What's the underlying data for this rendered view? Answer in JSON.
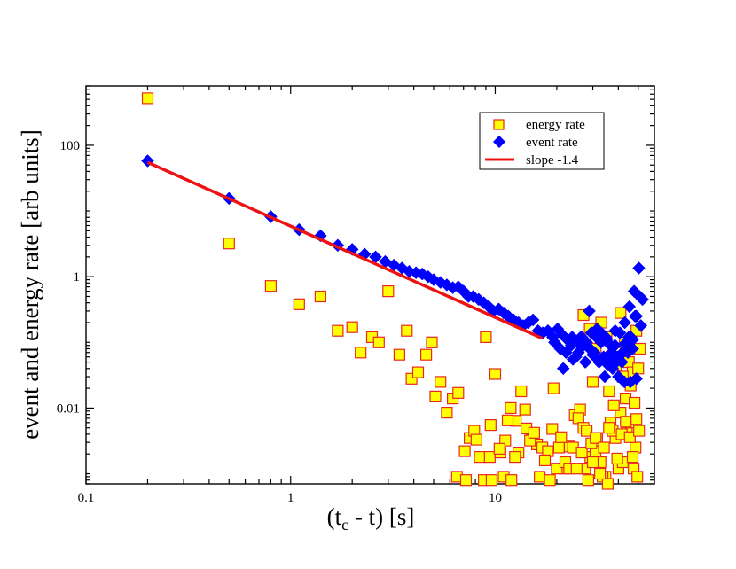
{
  "chart_data": {
    "type": "scatter",
    "title": "",
    "xlabel_main": "(t",
    "xlabel_sub": "c",
    "xlabel_rest": " - t) [s]",
    "ylabel": "event and energy rate [arb units]",
    "xscale": "log",
    "yscale": "log",
    "xlim": [
      0.1,
      60
    ],
    "ylim": [
      0.0007,
      800
    ],
    "xticks": [
      0.1,
      1,
      10
    ],
    "xtick_labels": [
      "0.1",
      "1",
      "10"
    ],
    "yticks": [
      0.01,
      1,
      100
    ],
    "ytick_labels": [
      "0.01",
      "1",
      "100"
    ],
    "legend_position": "top-right",
    "series": [
      {
        "name": "energy rate",
        "marker": "square",
        "fill": "#ffff00",
        "stroke": "#e8281e",
        "x": [
          0.2,
          0.5,
          0.8,
          1.1,
          1.4,
          1.7,
          2.0,
          2.2,
          2.5,
          2.7,
          3.0,
          3.4,
          3.7,
          3.9,
          4.2,
          4.6,
          4.9,
          5.1,
          5.4,
          5.8,
          6.2,
          6.6,
          7.1,
          7.5,
          7.9,
          8.4,
          9.0,
          9.4,
          10.0,
          10.6,
          11.2,
          11.9,
          12.6,
          13.4,
          14.2,
          15.0,
          16.0,
          17.0,
          18.1,
          19.3,
          20.5,
          21.8,
          23.1,
          24.5,
          26.0,
          27.5,
          29.2,
          30.9,
          32.7,
          34.6,
          36.6,
          38.7,
          41.0,
          43.4,
          45.9,
          48.5,
          6.5,
          7.2,
          8.1,
          8.8,
          9.6,
          11.0,
          12.0,
          13.0,
          14.8,
          16.5,
          18.5,
          20.0,
          22.0,
          24.0,
          25.5,
          27.0,
          28.5,
          30.0,
          31.5,
          33.5,
          35.5,
          37.5,
          40.0,
          42.0,
          44.0,
          46.0,
          47.5,
          49.5,
          9.5,
          10.5,
          11.5,
          12.5,
          14.0,
          15.5,
          17.5,
          19.0,
          21.0,
          23.0,
          25.0,
          26.5,
          28.0,
          29.5,
          31.0,
          32.5,
          34.0,
          36.0,
          38.0,
          39.5,
          41.5,
          43.5,
          45.5,
          47.0,
          49.0,
          50.5,
          27.0,
          29.0,
          31.0,
          33.0,
          35.0,
          37.0,
          39.0,
          41.0,
          43.0,
          45.0,
          47.0,
          49.0,
          51.0,
          30.0,
          36.0,
          42.0,
          48.0,
          50.0
        ],
        "y": [
          520,
          3.2,
          0.72,
          0.38,
          0.5,
          0.15,
          0.17,
          0.07,
          0.12,
          0.1,
          0.6,
          0.065,
          0.15,
          0.028,
          0.035,
          0.065,
          0.1,
          0.015,
          0.025,
          0.0085,
          0.014,
          0.017,
          0.0022,
          0.0035,
          0.0045,
          0.0018,
          0.12,
          0.0018,
          0.033,
          0.0021,
          0.0032,
          0.01,
          0.0064,
          0.018,
          0.0049,
          0.0033,
          0.0028,
          0.0025,
          0.0022,
          0.02,
          0.0025,
          0.0012,
          0.0026,
          0.0078,
          0.0095,
          0.0012,
          0.0018,
          0.0022,
          0.0015,
          0.0009,
          0.006,
          0.0035,
          0.0085,
          0.014,
          0.022,
          0.0025,
          0.0009,
          0.0008,
          0.0033,
          0.0008,
          0.0008,
          0.0009,
          0.0008,
          0.0021,
          0.0032,
          0.0009,
          0.0008,
          0.0012,
          0.0015,
          0.0025,
          0.007,
          0.005,
          0.0008,
          0.0015,
          0.0035,
          0.0009,
          0.0007,
          0.0045,
          0.0012,
          0.0015,
          0.0042,
          0.006,
          0.0012,
          0.0009,
          0.0055,
          0.0024,
          0.0065,
          0.0018,
          0.0095,
          0.0042,
          0.0016,
          0.0048,
          0.0036,
          0.0012,
          0.0012,
          0.0021,
          0.0045,
          0.0029,
          0.0035,
          0.001,
          0.0025,
          0.005,
          0.011,
          0.0017,
          0.004,
          0.0062,
          0.0036,
          0.0018,
          0.0068,
          0.0045,
          0.26,
          0.16,
          0.08,
          0.2,
          0.12,
          0.06,
          0.045,
          0.28,
          0.1,
          0.05,
          0.035,
          0.15,
          0.08,
          0.025,
          0.018,
          0.03,
          0.012,
          0.04
        ]
      },
      {
        "name": "event rate",
        "marker": "diamond",
        "fill": "#0000ff",
        "stroke": "#0000ff",
        "x": [
          0.2,
          0.5,
          0.8,
          1.1,
          1.4,
          1.7,
          2.0,
          2.3,
          2.6,
          2.9,
          3.2,
          3.5,
          3.8,
          4.1,
          4.4,
          4.7,
          5.0,
          5.4,
          5.8,
          6.2,
          6.6,
          7.0,
          7.4,
          7.8,
          8.3,
          8.8,
          9.3,
          9.8,
          10.4,
          11.0,
          11.6,
          12.3,
          13.0,
          13.7,
          14.5,
          15.3,
          16.2,
          17.1,
          18.1,
          19.1,
          20.2,
          21.3,
          22.5,
          23.8,
          25.1,
          26.5,
          28.0,
          29.5,
          31.2,
          32.9,
          34.7,
          36.6,
          38.6,
          40.7,
          43.0,
          45.3,
          47.8,
          50.4,
          19.5,
          20.8,
          22.2,
          23.5,
          24.8,
          26.2,
          27.6,
          29.1,
          30.6,
          32.2,
          33.9,
          35.7,
          37.5,
          39.5,
          41.6,
          43.7,
          46.0,
          48.3,
          50.8,
          52.5,
          21.5,
          25.5,
          28.8,
          31.5,
          34.3,
          37.0,
          40.0,
          42.8,
          45.8,
          49.0,
          51.5,
          30.0,
          35.0,
          38.5,
          44.5,
          47.0,
          24.0,
          27.0,
          29.0,
          31.0,
          33.0,
          35.0,
          37.0,
          39.0,
          41.0,
          43.0,
          45.0,
          47.0,
          49.0
        ],
        "y": [
          58,
          15.5,
          8.2,
          5.2,
          4.2,
          3.0,
          2.6,
          2.2,
          2.0,
          1.7,
          1.5,
          1.35,
          1.2,
          1.15,
          1.1,
          1.0,
          0.9,
          0.82,
          0.75,
          0.68,
          0.7,
          0.6,
          0.5,
          0.5,
          0.45,
          0.4,
          0.35,
          0.3,
          0.32,
          0.28,
          0.25,
          0.22,
          0.2,
          0.18,
          0.2,
          0.22,
          0.15,
          0.14,
          0.15,
          0.12,
          0.16,
          0.13,
          0.11,
          0.12,
          0.1,
          0.12,
          0.1,
          0.14,
          0.12,
          0.1,
          0.12,
          0.09,
          0.15,
          0.14,
          0.2,
          0.35,
          0.6,
          1.35,
          0.1,
          0.08,
          0.07,
          0.09,
          0.06,
          0.12,
          0.05,
          0.08,
          0.07,
          0.05,
          0.06,
          0.045,
          0.04,
          0.06,
          0.05,
          0.08,
          0.12,
          0.25,
          0.5,
          0.45,
          0.04,
          0.07,
          0.3,
          0.16,
          0.03,
          0.055,
          0.03,
          0.025,
          0.025,
          0.028,
          0.18,
          0.065,
          0.11,
          0.09,
          0.07,
          0.11,
          0.055,
          0.09,
          0.08,
          0.06,
          0.14,
          0.11,
          0.07,
          0.05,
          0.065,
          0.095,
          0.12,
          0.08,
          0.25
        ]
      }
    ],
    "fit_line": {
      "name": "slope -1.4",
      "color": "#ee1111",
      "x": [
        0.2,
        17.0
      ],
      "y": [
        55,
        0.115
      ]
    }
  }
}
